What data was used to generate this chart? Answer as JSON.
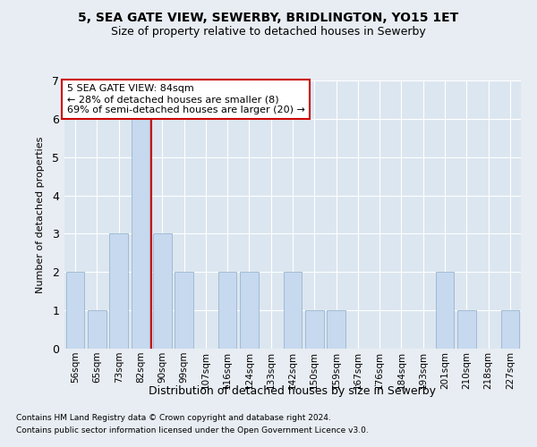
{
  "title1": "5, SEA GATE VIEW, SEWERBY, BRIDLINGTON, YO15 1ET",
  "title2": "Size of property relative to detached houses in Sewerby",
  "xlabel": "Distribution of detached houses by size in Sewerby",
  "ylabel": "Number of detached properties",
  "categories": [
    "56sqm",
    "65sqm",
    "73sqm",
    "82sqm",
    "90sqm",
    "99sqm",
    "107sqm",
    "116sqm",
    "124sqm",
    "133sqm",
    "142sqm",
    "150sqm",
    "159sqm",
    "167sqm",
    "176sqm",
    "184sqm",
    "193sqm",
    "201sqm",
    "210sqm",
    "218sqm",
    "227sqm"
  ],
  "values": [
    2,
    1,
    3,
    6,
    3,
    2,
    0,
    2,
    2,
    0,
    2,
    1,
    1,
    0,
    0,
    0,
    0,
    2,
    1,
    0,
    1
  ],
  "bar_color": "#c6d9ee",
  "bar_edge_color": "#9ab5d0",
  "highlight_line_index": 4,
  "highlight_line_color": "#cc0000",
  "ylim": [
    0,
    7
  ],
  "yticks": [
    0,
    1,
    2,
    3,
    4,
    5,
    6,
    7
  ],
  "annotation_line1": "5 SEA GATE VIEW: 84sqm",
  "annotation_line2": "← 28% of detached houses are smaller (8)",
  "annotation_line3": "69% of semi-detached houses are larger (20) →",
  "annotation_box_color": "#ffffff",
  "annotation_box_edge": "#cc0000",
  "footnote1": "Contains HM Land Registry data © Crown copyright and database right 2024.",
  "footnote2": "Contains public sector information licensed under the Open Government Licence v3.0.",
  "background_color": "#e8edf3",
  "plot_bg_color": "#dce6f0"
}
